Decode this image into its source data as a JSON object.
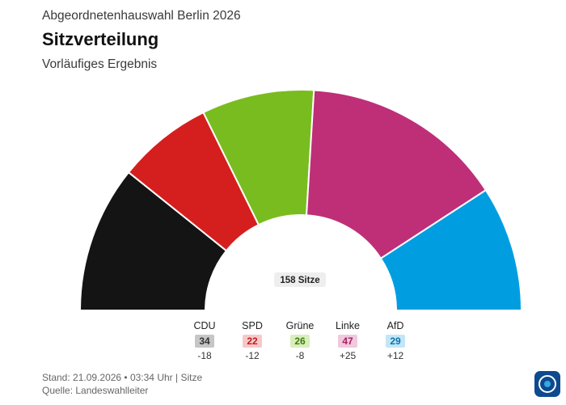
{
  "header": {
    "kicker": "Abgeordnetenhauswahl Berlin 2026",
    "title": "Sitzverteilung",
    "subtitle": "Vorläufiges Ergebnis"
  },
  "chart_data": {
    "type": "parliament",
    "total_label": "158 Sitze",
    "total_seats": 158,
    "parties": [
      {
        "name": "CDU",
        "seats": 34,
        "change": "-18",
        "color": "#141414",
        "badge_bg": "#c6c6c6",
        "badge_fg": "#333333"
      },
      {
        "name": "SPD",
        "seats": 22,
        "change": "-12",
        "color": "#d51f1f",
        "badge_bg": "#f6c9c9",
        "badge_fg": "#c21a1a"
      },
      {
        "name": "Grüne",
        "seats": 26,
        "change": "-8",
        "color": "#79bc1f",
        "badge_bg": "#d9eebd",
        "badge_fg": "#3f7a0c"
      },
      {
        "name": "Linke",
        "seats": 47,
        "change": "+25",
        "color": "#be2f78",
        "badge_bg": "#f1c8de",
        "badge_fg": "#a3235f"
      },
      {
        "name": "AfD",
        "seats": 29,
        "change": "+12",
        "color": "#009ee0",
        "badge_bg": "#c2e6f7",
        "badge_fg": "#0b74a8"
      }
    ]
  },
  "footer": {
    "stand": "Stand: 21.09.2026 • 03:34 Uhr | Sitze",
    "source": "Quelle: Landeswahlleiter"
  },
  "logo": {
    "icon": "tagesschau-logo-icon"
  }
}
